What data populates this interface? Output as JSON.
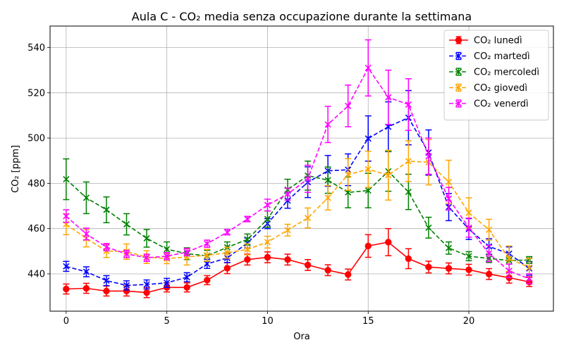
{
  "chart_data": {
    "type": "line",
    "title": "Aula C - CO₂ media senza occupazione durante la settimana",
    "xlabel": "Ora",
    "ylabel": "CO₂ [ppm]",
    "xlim": [
      -0.8,
      24.2
    ],
    "ylim": [
      423.5,
      549.5
    ],
    "xticks": [
      0,
      5,
      10,
      15,
      20
    ],
    "yticks": [
      440,
      460,
      480,
      500,
      520,
      540
    ],
    "grid": true,
    "legend_position": "top-right",
    "x": [
      0,
      1,
      2,
      3,
      4,
      5,
      6,
      7,
      8,
      9,
      10,
      11,
      12,
      13,
      14,
      15,
      16,
      17,
      18,
      19,
      20,
      21,
      22,
      23
    ],
    "series": [
      {
        "name": "CO₂ lunedì",
        "color": "#ff0000",
        "linestyle": "solid",
        "marker": "circle",
        "values": [
          433.3,
          433.6,
          432.4,
          432.4,
          431.7,
          434.0,
          434.0,
          437.2,
          442.5,
          446.3,
          447.3,
          446.3,
          443.9,
          441.6,
          439.7,
          452.3,
          454.0,
          446.7,
          443.0,
          442.4,
          441.8,
          439.9,
          438.3,
          436.4
        ],
        "errors": [
          2.2,
          2.2,
          2.2,
          2.2,
          2.2,
          2.0,
          2.0,
          2.0,
          2.4,
          2.4,
          2.4,
          2.4,
          2.4,
          2.4,
          2.4,
          5.0,
          6.0,
          4.4,
          2.6,
          2.4,
          2.4,
          2.4,
          2.4,
          2.0
        ]
      },
      {
        "name": "CO₂ martedì",
        "color": "#0000ff",
        "linestyle": "dashed",
        "marker": "x",
        "values": [
          443.3,
          440.9,
          437.0,
          434.9,
          435.3,
          436.0,
          438.5,
          444.4,
          447.0,
          453.6,
          462.2,
          472.4,
          480.5,
          485.5,
          486.0,
          499.8,
          505.0,
          509.0,
          493.6,
          469.5,
          459.8,
          452.1,
          448.9,
          442.4
        ],
        "errors": [
          2.2,
          2.2,
          2.2,
          2.0,
          2.0,
          2.0,
          2.0,
          2.0,
          2.0,
          2.2,
          2.2,
          3.4,
          6.8,
          6.8,
          7.0,
          10.0,
          11.0,
          12.0,
          10.0,
          6.0,
          4.6,
          3.4,
          3.0,
          3.0
        ]
      },
      {
        "name": "CO₂ mercoledì",
        "color": "#008000",
        "linestyle": "dashed",
        "marker": "x",
        "values": [
          481.8,
          473.6,
          468.3,
          461.9,
          455.7,
          450.9,
          448.9,
          448.0,
          451.7,
          455.2,
          464.2,
          477.2,
          483.4,
          481.4,
          476.0,
          476.8,
          485.3,
          476.2,
          460.4,
          451.4,
          447.8,
          446.8,
          445.9,
          446.1
        ],
        "errors": [
          9.0,
          7.0,
          5.7,
          4.7,
          3.9,
          3.2,
          2.6,
          2.4,
          2.4,
          2.4,
          3.6,
          4.6,
          6.4,
          5.8,
          6.8,
          7.6,
          8.8,
          7.8,
          4.6,
          2.7,
          2.0,
          1.8,
          1.6,
          1.5
        ]
      },
      {
        "name": "CO₂ giovedì",
        "color": "#ffa500",
        "linestyle": "dashed",
        "marker": "x",
        "values": [
          461.9,
          455.7,
          450.1,
          449.8,
          447.4,
          446.7,
          447.5,
          448.2,
          449.3,
          450.8,
          454.0,
          459.3,
          464.7,
          473.6,
          483.9,
          486.2,
          483.6,
          489.8,
          489.3,
          480.6,
          467.0,
          459.5,
          446.7,
          442.8
        ],
        "errors": [
          4.6,
          3.8,
          2.9,
          3.4,
          2.8,
          2.2,
          3.6,
          2.6,
          2.4,
          2.4,
          2.6,
          2.6,
          4.4,
          5.4,
          7.0,
          8.0,
          11.0,
          9.0,
          10.0,
          9.6,
          6.6,
          4.6,
          5.6,
          4.0
        ]
      },
      {
        "name": "CO₂ venerdì",
        "color": "#ff00ff",
        "linestyle": "dashed",
        "marker": "x",
        "values": [
          465.5,
          457.6,
          451.8,
          448.8,
          447.1,
          447.8,
          449.6,
          453.3,
          458.4,
          464.2,
          470.4,
          475.2,
          482.0,
          506.0,
          514.2,
          531.0,
          518.0,
          514.8,
          492.0,
          473.2,
          460.4,
          449.0,
          441.3,
          437.8
        ],
        "errors": [
          2.8,
          2.6,
          1.6,
          1.6,
          1.6,
          1.6,
          1.6,
          1.6,
          1.2,
          1.2,
          2.6,
          2.6,
          6.0,
          8.0,
          9.2,
          12.4,
          12.0,
          11.4,
          8.0,
          5.0,
          4.2,
          3.6,
          3.0,
          2.2
        ]
      }
    ]
  }
}
